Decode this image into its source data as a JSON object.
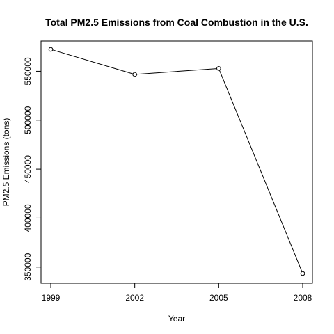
{
  "chart_data": {
    "type": "line",
    "title": "Total PM2.5 Emissions from Coal Combustion in the U.S.",
    "xlabel": "Year",
    "ylabel": "PM2.5 Emissions (tons)",
    "x": [
      1999,
      2002,
      2005,
      2008
    ],
    "x_ticks": [
      "1999",
      "2002",
      "2005",
      "2008"
    ],
    "y_ticks": [
      "350000",
      "400000",
      "450000",
      "500000",
      "550000"
    ],
    "y_tick_values": [
      350000,
      400000,
      450000,
      500000,
      550000
    ],
    "series": [
      {
        "values": [
          572346,
          546789,
          552882,
          343432
        ]
      }
    ],
    "xlim": [
      1999,
      2008
    ],
    "ylim": [
      343432,
      572346
    ],
    "markers": "open-circle",
    "line_color": "#000000",
    "grid": false,
    "legend": "none"
  }
}
